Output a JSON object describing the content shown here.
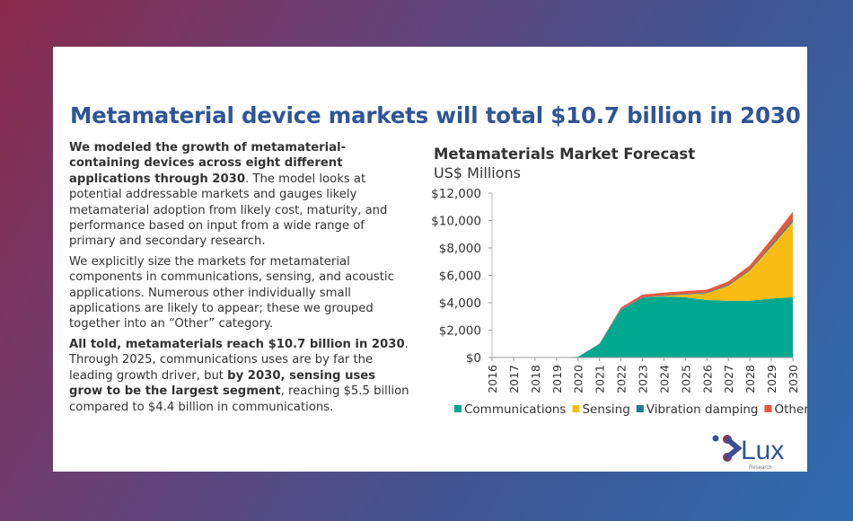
{
  "title": "Metamaterial device markets will total $10.7 billion in 2030",
  "paragraphs": [
    {
      "bold": "We modeled the growth of metamaterial-containing devices across eight different applications through 2030",
      "rest": ". The model looks at potential addressable markets and gauges likely metamaterial adoption from likely cost, maturity, and performance based on input from a wide range of primary and secondary research."
    },
    {
      "text": "We explicitly size the markets for metamaterial components in communications, sensing, and acoustic applications. Numerous other individually small applications are likely to appear; these we grouped together into an “Other” category."
    },
    {
      "bold": "All told, metamaterials reach $10.7 billion in 2030",
      "mid": ". Through 2025, communications uses are by far the leading growth driver, but ",
      "bold2": "by 2030, sensing uses grow to be the largest segment",
      "rest": ", reaching $5.5 billion compared to $4.4 billion in communications."
    }
  ],
  "logo": {
    "text": "Lux",
    "sub": "Research"
  },
  "chart_data": {
    "type": "area",
    "stacked": true,
    "title": "Metamaterials Market Forecast",
    "subtitle": "US$ Millions",
    "x": [
      "2016",
      "2017",
      "2018",
      "2019",
      "2020",
      "2021",
      "2022",
      "2023",
      "2024",
      "2025",
      "2026",
      "2027",
      "2028",
      "2029",
      "2030"
    ],
    "ylim": [
      0,
      12000
    ],
    "yticks": [
      "$0",
      "$2,000",
      "$4,000",
      "$6,000",
      "$8,000",
      "$10,000",
      "$12,000"
    ],
    "legend_position": "bottom",
    "series": [
      {
        "name": "Communications",
        "color": "#00a88f",
        "values": [
          0,
          0,
          0,
          0,
          50,
          1000,
          3500,
          4350,
          4450,
          4400,
          4200,
          4150,
          4150,
          4300,
          4400
        ]
      },
      {
        "name": "Sensing",
        "color": "#f9bc12",
        "values": [
          0,
          0,
          0,
          0,
          0,
          0,
          0,
          0,
          50,
          200,
          500,
          1100,
          2200,
          3800,
          5500
        ]
      },
      {
        "name": "Vibration damping",
        "color": "#1b7b97",
        "values": [
          0,
          0,
          0,
          0,
          0,
          0,
          20,
          40,
          40,
          50,
          50,
          60,
          80,
          120,
          150
        ]
      },
      {
        "name": "Other",
        "color": "#e8573f",
        "values": [
          0,
          0,
          0,
          0,
          0,
          20,
          130,
          200,
          200,
          200,
          200,
          250,
          300,
          420,
          600
        ]
      }
    ]
  }
}
